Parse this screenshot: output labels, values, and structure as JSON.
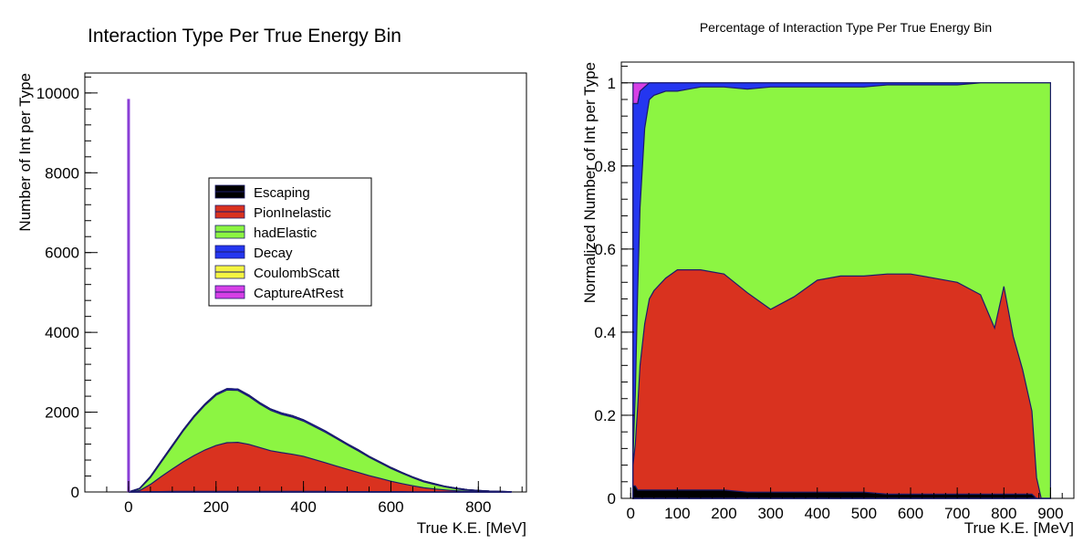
{
  "chart_data": [
    {
      "type": "area",
      "stacked": true,
      "title": "Interaction Type Per True Energy Bin",
      "xlabel": "True K.E. [MeV]",
      "ylabel": "Number of Int per Type",
      "xlim": [
        -100,
        910
      ],
      "ylim": [
        0,
        10500
      ],
      "xticks": [
        0,
        200,
        400,
        600,
        800
      ],
      "yticks": [
        0,
        2000,
        4000,
        6000,
        8000,
        10000
      ],
      "legend": {
        "placement": "center",
        "entries": [
          {
            "name": "Escaping",
            "color": "#000000"
          },
          {
            "name": "PionInelastic",
            "color": "#d9321f"
          },
          {
            "name": "hadElastic",
            "color": "#8cf542"
          },
          {
            "name": "Decay",
            "color": "#2436f0"
          },
          {
            "name": "CoulombScatt",
            "color": "#f5f542"
          },
          {
            "name": "CaptureAtRest",
            "color": "#d63fe6"
          }
        ]
      },
      "spike": {
        "x": 0,
        "value": 9850,
        "color": "#8a3fd6"
      },
      "x": [
        0,
        25,
        50,
        75,
        100,
        125,
        150,
        175,
        200,
        225,
        250,
        275,
        300,
        325,
        350,
        375,
        400,
        425,
        450,
        475,
        500,
        525,
        550,
        575,
        600,
        625,
        650,
        675,
        700,
        725,
        750,
        775,
        800,
        825,
        850,
        875
      ],
      "series": [
        {
          "name": "Escaping",
          "values": [
            0,
            5,
            10,
            10,
            15,
            15,
            15,
            15,
            15,
            15,
            15,
            15,
            15,
            15,
            15,
            15,
            15,
            15,
            15,
            10,
            10,
            10,
            10,
            10,
            10,
            10,
            5,
            5,
            5,
            5,
            5,
            0,
            0,
            0,
            0,
            0
          ]
        },
        {
          "name": "PionInelastic",
          "values": [
            0,
            30,
            180,
            380,
            560,
            740,
            900,
            1040,
            1150,
            1220,
            1230,
            1180,
            1100,
            1020,
            970,
            930,
            880,
            800,
            720,
            640,
            560,
            480,
            400,
            330,
            260,
            200,
            150,
            100,
            70,
            45,
            25,
            12,
            5,
            3,
            1,
            0
          ]
        },
        {
          "name": "hadElastic",
          "values": [
            0,
            40,
            170,
            360,
            560,
            770,
            960,
            1120,
            1260,
            1320,
            1300,
            1200,
            1090,
            1010,
            960,
            930,
            880,
            820,
            760,
            690,
            610,
            540,
            460,
            390,
            320,
            260,
            200,
            150,
            110,
            75,
            50,
            30,
            18,
            10,
            5,
            2
          ]
        },
        {
          "name": "Decay",
          "values": [
            0,
            15,
            30,
            35,
            35,
            35,
            35,
            35,
            35,
            35,
            35,
            35,
            35,
            35,
            35,
            35,
            35,
            35,
            35,
            30,
            30,
            30,
            25,
            25,
            25,
            20,
            20,
            20,
            20,
            15,
            15,
            15,
            15,
            10,
            10,
            5
          ]
        },
        {
          "name": "CoulombScatt",
          "values": [
            0,
            0,
            0,
            0,
            0,
            0,
            0,
            0,
            0,
            0,
            0,
            0,
            0,
            0,
            0,
            0,
            0,
            0,
            0,
            0,
            0,
            0,
            0,
            0,
            0,
            0,
            0,
            0,
            0,
            0,
            0,
            0,
            0,
            0,
            0,
            0
          ]
        },
        {
          "name": "CaptureAtRest",
          "values": [
            0,
            0,
            0,
            0,
            0,
            0,
            0,
            0,
            0,
            0,
            0,
            0,
            0,
            0,
            0,
            0,
            0,
            0,
            0,
            0,
            0,
            0,
            0,
            0,
            0,
            0,
            0,
            0,
            0,
            0,
            0,
            0,
            0,
            0,
            0,
            0
          ]
        }
      ]
    },
    {
      "type": "area",
      "stacked": true,
      "normalized": true,
      "title": "Percentage of Interaction Type Per True Energy Bin",
      "xlabel": "True K.E. [MeV]",
      "ylabel": "Normalized Number of Int per Type",
      "xlim": [
        -20,
        950
      ],
      "ylim": [
        0,
        1.05
      ],
      "xticks": [
        0,
        100,
        200,
        300,
        400,
        500,
        600,
        700,
        800,
        900
      ],
      "yticks": [
        0,
        0.2,
        0.4,
        0.6,
        0.8,
        1
      ],
      "x": [
        5,
        10,
        15,
        20,
        30,
        40,
        50,
        75,
        100,
        150,
        200,
        250,
        300,
        350,
        400,
        450,
        500,
        550,
        600,
        650,
        700,
        750,
        780,
        800,
        820,
        840,
        860,
        870,
        880,
        900
      ],
      "series": [
        {
          "name": "Escaping",
          "values": [
            0.03,
            0.03,
            0.02,
            0.02,
            0.02,
            0.02,
            0.02,
            0.02,
            0.02,
            0.02,
            0.02,
            0.015,
            0.015,
            0.015,
            0.015,
            0.015,
            0.015,
            0.01,
            0.01,
            0.01,
            0.01,
            0.01,
            0.01,
            0.01,
            0.01,
            0.01,
            0.01,
            0,
            0,
            0
          ]
        },
        {
          "name": "PionInelastic",
          "values": [
            0.05,
            0.1,
            0.2,
            0.3,
            0.4,
            0.46,
            0.48,
            0.51,
            0.53,
            0.53,
            0.52,
            0.48,
            0.44,
            0.47,
            0.51,
            0.52,
            0.52,
            0.53,
            0.53,
            0.52,
            0.51,
            0.48,
            0.4,
            0.5,
            0.38,
            0.3,
            0.2,
            0.05,
            0,
            0
          ]
        },
        {
          "name": "hadElastic",
          "values": [
            0.02,
            0.12,
            0.28,
            0.38,
            0.47,
            0.48,
            0.47,
            0.45,
            0.43,
            0.44,
            0.45,
            0.49,
            0.535,
            0.505,
            0.465,
            0.455,
            0.455,
            0.455,
            0.455,
            0.465,
            0.475,
            0.51,
            0.59,
            0.49,
            0.61,
            0.69,
            0.79,
            0.95,
            1.0,
            1.0
          ]
        },
        {
          "name": "Decay",
          "values": [
            0.85,
            0.7,
            0.45,
            0.28,
            0.1,
            0.04,
            0.03,
            0.02,
            0.02,
            0.01,
            0.01,
            0.015,
            0.01,
            0.01,
            0.01,
            0.01,
            0.01,
            0.005,
            0.005,
            0.005,
            0.005,
            0,
            0,
            0,
            0,
            0,
            0,
            0,
            0,
            0
          ]
        },
        {
          "name": "CoulombScatt",
          "values": [
            0,
            0,
            0,
            0,
            0,
            0,
            0,
            0,
            0,
            0,
            0,
            0,
            0,
            0,
            0,
            0,
            0,
            0,
            0,
            0,
            0,
            0,
            0,
            0,
            0,
            0,
            0,
            0,
            0,
            0
          ]
        },
        {
          "name": "CaptureAtRest",
          "values": [
            0.05,
            0.05,
            0.05,
            0.02,
            0.01,
            0,
            0,
            0,
            0,
            0,
            0,
            0,
            0,
            0,
            0,
            0,
            0,
            0,
            0,
            0,
            0,
            0,
            0,
            0,
            0,
            0,
            0,
            0,
            0,
            0
          ]
        }
      ]
    }
  ]
}
